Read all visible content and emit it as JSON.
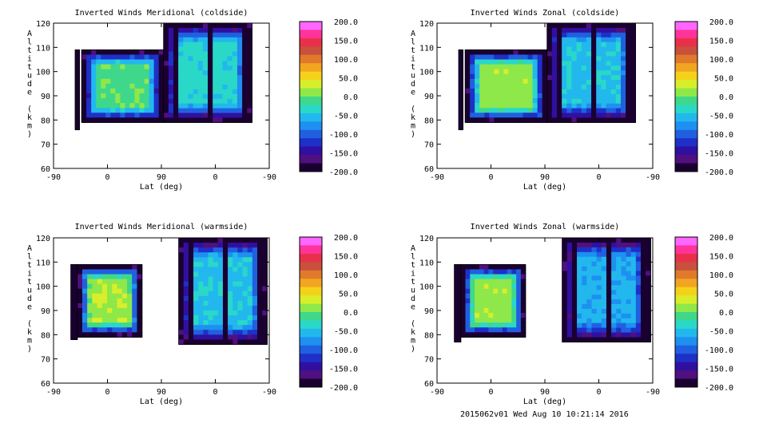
{
  "colorbar": {
    "labels": [
      "200.0",
      "150.0",
      "100.0",
      "50.0",
      "0.0",
      "-50.0",
      "-100.0",
      "-150.0",
      "-200.0"
    ],
    "colors": [
      "#ff66ff",
      "#ff3399",
      "#e8304a",
      "#c8503c",
      "#e07a2a",
      "#f2a520",
      "#f5d21a",
      "#d8ee2a",
      "#8ee84a",
      "#3fd88a",
      "#2ad8c8",
      "#22b8ee",
      "#1e90f0",
      "#2060e0",
      "#1e30c8",
      "#3010a0",
      "#501080",
      "#1a0030"
    ]
  },
  "footer": "2015062v01 Wed Aug 10 10:21:14 2016",
  "chart_data": [
    {
      "type": "heatmap",
      "title": "Inverted Winds Meridional (coldside)",
      "xlabel": "Lat (deg)",
      "ylabel": "Altitude (km)",
      "xticks": [
        "-90",
        "0",
        "90",
        "0",
        "-90"
      ],
      "yticks": [
        "60",
        "70",
        "80",
        "90",
        "100",
        "110",
        "120"
      ],
      "ylim": [
        60,
        120
      ],
      "colorbar_range": [
        -200,
        200
      ]
    },
    {
      "type": "heatmap",
      "title": "Inverted Winds Zonal (coldside)",
      "xlabel": "Lat (deg)",
      "ylabel": "Altitude (km)",
      "xticks": [
        "-90",
        "0",
        "90",
        "0",
        "-90"
      ],
      "yticks": [
        "60",
        "70",
        "80",
        "90",
        "100",
        "110",
        "120"
      ],
      "ylim": [
        60,
        120
      ],
      "colorbar_range": [
        -200,
        200
      ]
    },
    {
      "type": "heatmap",
      "title": "Inverted Winds Meridional (warmside)",
      "xlabel": "Lat (deg)",
      "ylabel": "Altitude (km)",
      "xticks": [
        "-90",
        "0",
        "90",
        "0",
        "-90"
      ],
      "yticks": [
        "60",
        "70",
        "80",
        "90",
        "100",
        "110",
        "120"
      ],
      "ylim": [
        60,
        120
      ],
      "colorbar_range": [
        -200,
        200
      ]
    },
    {
      "type": "heatmap",
      "title": "Inverted Winds Zonal (warmside)",
      "xlabel": "Lat (deg)",
      "ylabel": "Altitude (km)",
      "xticks": [
        "-90",
        "0",
        "90",
        "0",
        "-90"
      ],
      "yticks": [
        "60",
        "70",
        "80",
        "90",
        "100",
        "110",
        "120"
      ],
      "ylim": [
        60,
        120
      ],
      "colorbar_range": [
        -200,
        200
      ]
    }
  ]
}
